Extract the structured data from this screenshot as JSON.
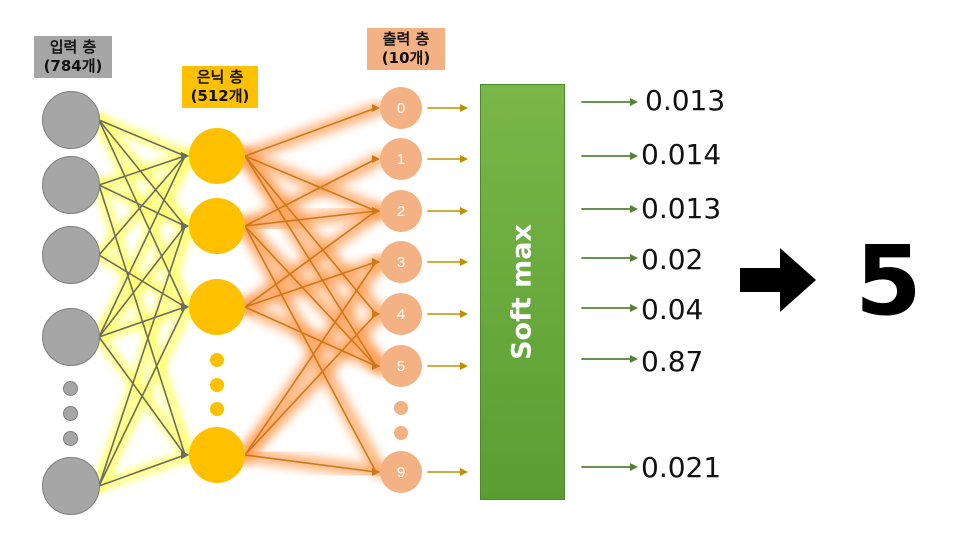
{
  "input_layer": {
    "title": "입력 층",
    "count": "(784개)"
  },
  "hidden_layer": {
    "title": "은닉 층",
    "count": "(512개)"
  },
  "output_layer": {
    "title": "출력 층",
    "count": "(10개)"
  },
  "output_nodes": [
    "0",
    "1",
    "2",
    "3",
    "4",
    "5",
    "9"
  ],
  "softmax": {
    "label": "Soft max"
  },
  "probabilities": [
    "0.013",
    "0.014",
    "0.013",
    "0.02",
    "0.04",
    "0.87",
    "0.021"
  ],
  "result": {
    "digit": "5"
  },
  "colors": {
    "input": "#a6a6a6",
    "hidden": "#ffc000",
    "output": "#f4b183",
    "softmax": "#70ad47",
    "glow_input": "#ffff66",
    "glow_hidden": "#ff9a4d",
    "edge_input": "#6b6b6b",
    "edge_hidden": "#c97a1a",
    "arrow_output": "#bf8f00",
    "arrow_softmax": "#548235"
  }
}
